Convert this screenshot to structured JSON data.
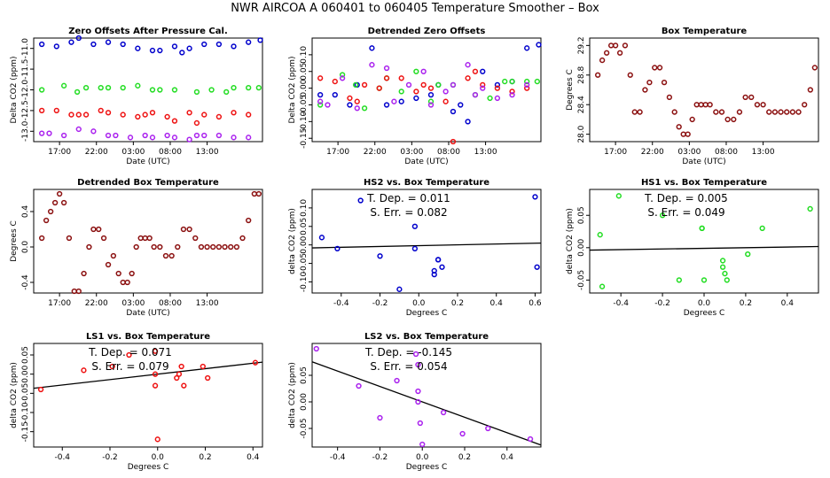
{
  "title": "NWR   AIRCOA A   060401 to 060405   Temperature Smoother – Box",
  "chart_data": [
    {
      "id": "p1",
      "type": "scatter",
      "title": "Zero Offsets After Pressure Cal.",
      "xlabel": "Date (UTC)",
      "ylabel": "Delta CO2 (ppm)",
      "xlim": [
        13.5,
        44.5
      ],
      "ylim": [
        -13.25,
        -10.75
      ],
      "xticks": [
        17,
        22,
        27,
        32,
        37
      ],
      "xtick_labels": [
        "17:00",
        "22:00",
        "03:00",
        "08:00",
        "13:00"
      ],
      "yticks": [
        -13,
        -12.5,
        -12,
        -11.5,
        -11
      ],
      "ytick_labels": [
        "-13.0",
        "-12.5",
        "-12.0",
        "-11.5",
        "-11.0"
      ],
      "series": [
        {
          "name": "HS2",
          "color": "#0000cc",
          "x": [
            14.6,
            16.6,
            18.6,
            19.6,
            21.6,
            23.6,
            25.6,
            27.6,
            29.6,
            30.6,
            32.6,
            33.6,
            34.6,
            36.6,
            38.6,
            40.6,
            42.6,
            44.2
          ],
          "y": [
            -10.9,
            -10.95,
            -10.85,
            -10.75,
            -10.9,
            -10.85,
            -10.9,
            -11.0,
            -11.05,
            -11.05,
            -10.95,
            -11.1,
            -11.0,
            -10.9,
            -10.9,
            -10.95,
            -10.85,
            -10.8
          ]
        },
        {
          "name": "HS1",
          "color": "#22dd22",
          "x": [
            14.6,
            17.6,
            19.4,
            20.6,
            22.6,
            23.6,
            25.6,
            27.6,
            29.6,
            30.6,
            32.6,
            35.6,
            37.6,
            39.6,
            40.6,
            42.6,
            44.0
          ],
          "y": [
            -12.0,
            -11.9,
            -12.05,
            -11.95,
            -11.95,
            -11.95,
            -11.95,
            -11.9,
            -12.0,
            -12.0,
            -12.0,
            -12.05,
            -12.0,
            -12.05,
            -11.95,
            -11.95,
            -11.95
          ]
        },
        {
          "name": "LS1",
          "color": "#ee1111",
          "x": [
            14.6,
            16.6,
            18.6,
            19.6,
            20.6,
            22.6,
            23.6,
            25.6,
            27.6,
            28.6,
            29.6,
            31.6,
            32.6,
            34.6,
            35.6,
            36.6,
            38.6,
            40.6,
            42.6
          ],
          "y": [
            -12.5,
            -12.5,
            -12.6,
            -12.6,
            -12.6,
            -12.5,
            -12.55,
            -12.6,
            -12.65,
            -12.6,
            -12.55,
            -12.65,
            -12.75,
            -12.55,
            -12.8,
            -12.6,
            -12.65,
            -12.55,
            -12.6
          ]
        },
        {
          "name": "LS2",
          "color": "#aa22ee",
          "x": [
            14.6,
            15.6,
            17.6,
            19.6,
            21.6,
            23.6,
            24.6,
            26.6,
            28.6,
            29.6,
            31.6,
            32.6,
            34.6,
            35.6,
            36.6,
            38.6,
            40.6,
            42.6
          ],
          "y": [
            -13.05,
            -13.05,
            -13.1,
            -12.95,
            -13.0,
            -13.1,
            -13.1,
            -13.15,
            -13.1,
            -13.15,
            -13.1,
            -13.15,
            -13.2,
            -13.1,
            -13.1,
            -13.1,
            -13.15,
            -13.15
          ]
        }
      ]
    },
    {
      "id": "p2",
      "type": "scatter",
      "title": "Detrended Zero Offsets",
      "xlabel": "Date (UTC)",
      "ylabel": "Delta CO2 (ppm)",
      "xlim": [
        13.5,
        44.5
      ],
      "ylim": [
        -0.16,
        0.15
      ],
      "xticks": [
        17,
        22,
        27,
        32,
        37
      ],
      "xtick_labels": [
        "17:00",
        "22:00",
        "03:00",
        "08:00",
        "13:00"
      ],
      "yticks": [
        -0.15,
        -0.1,
        -0.05,
        0,
        0.05,
        0.1
      ],
      "ytick_labels": [
        "-0.15",
        "-0.10",
        "-0.05",
        "0.00",
        "0.05",
        "0.10"
      ],
      "series": [
        {
          "name": "HS2",
          "color": "#0000cc",
          "x": [
            14.6,
            16.6,
            18.6,
            19.6,
            21.6,
            23.6,
            25.6,
            27.6,
            29.6,
            30.6,
            32.6,
            33.6,
            34.6,
            36.6,
            38.6,
            40.6,
            42.6,
            44.2
          ],
          "y": [
            -0.02,
            -0.02,
            -0.05,
            0.01,
            0.12,
            -0.05,
            -0.04,
            -0.03,
            -0.02,
            0.01,
            -0.07,
            -0.05,
            -0.1,
            0.05,
            0.01,
            0.02,
            0.12,
            0.13
          ]
        },
        {
          "name": "HS1",
          "color": "#22dd22",
          "x": [
            14.6,
            17.6,
            19.4,
            20.6,
            22.6,
            23.6,
            25.6,
            27.6,
            29.6,
            30.6,
            32.6,
            35.6,
            37.6,
            39.6,
            40.6,
            42.6,
            44.0
          ],
          "y": [
            -0.05,
            0.04,
            0.01,
            -0.06,
            0.0,
            0.03,
            -0.01,
            0.05,
            -0.04,
            0.01,
            0.01,
            -0.02,
            -0.03,
            0.02,
            0.02,
            0.02,
            0.02
          ]
        },
        {
          "name": "LS1",
          "color": "#ee1111",
          "x": [
            14.6,
            16.6,
            18.6,
            19.6,
            20.6,
            22.6,
            23.6,
            25.6,
            27.6,
            28.6,
            29.6,
            31.6,
            32.6,
            34.6,
            35.6,
            36.6,
            38.6,
            40.6,
            42.6
          ],
          "y": [
            0.03,
            0.02,
            -0.03,
            -0.04,
            0.01,
            0.0,
            0.03,
            0.03,
            -0.01,
            0.01,
            0.0,
            -0.04,
            -0.16,
            0.03,
            0.05,
            0.01,
            0.0,
            -0.01,
            0.0
          ]
        },
        {
          "name": "LS2",
          "color": "#aa22ee",
          "x": [
            14.6,
            15.6,
            17.6,
            19.6,
            21.6,
            23.6,
            24.6,
            26.6,
            28.6,
            29.6,
            31.6,
            32.6,
            34.6,
            35.6,
            36.6,
            38.6,
            40.6,
            42.6
          ],
          "y": [
            -0.04,
            -0.05,
            0.03,
            -0.06,
            0.07,
            0.06,
            -0.04,
            0.01,
            0.05,
            -0.05,
            -0.01,
            0.01,
            0.07,
            -0.02,
            0.0,
            -0.03,
            -0.02,
            0.01
          ]
        }
      ]
    },
    {
      "id": "p3",
      "type": "scatter",
      "title": "Box Temperature",
      "xlabel": "Date (UTC)",
      "ylabel": "Degrees C",
      "xlim": [
        13.5,
        44.5
      ],
      "ylim": [
        27.9,
        29.3
      ],
      "xticks": [
        17,
        22,
        27,
        32,
        37
      ],
      "xtick_labels": [
        "17:00",
        "22:00",
        "03:00",
        "08:00",
        "13:00"
      ],
      "yticks": [
        28.0,
        28.4,
        28.8,
        29.2
      ],
      "ytick_labels": [
        "28.0",
        "28.4",
        "28.8",
        "29.2"
      ],
      "series": [
        {
          "name": "Box",
          "color": "#8b1010",
          "x": [
            14.6,
            15.2,
            15.8,
            16.4,
            17.0,
            17.6,
            18.3,
            19.0,
            19.6,
            20.3,
            21.0,
            21.6,
            22.3,
            23.0,
            23.6,
            24.3,
            25.0,
            25.6,
            26.2,
            26.8,
            27.4,
            28.0,
            28.6,
            29.2,
            29.8,
            30.6,
            31.4,
            32.2,
            33.0,
            33.8,
            34.6,
            35.4,
            36.2,
            37.0,
            37.8,
            38.6,
            39.4,
            40.2,
            41.0,
            41.8,
            42.6,
            43.4,
            44.0
          ],
          "y": [
            28.8,
            29.0,
            29.1,
            29.2,
            29.2,
            29.1,
            29.2,
            28.8,
            28.3,
            28.3,
            28.6,
            28.7,
            28.9,
            28.9,
            28.7,
            28.5,
            28.3,
            28.1,
            28.0,
            28.0,
            28.2,
            28.4,
            28.4,
            28.4,
            28.4,
            28.3,
            28.3,
            28.2,
            28.2,
            28.3,
            28.5,
            28.5,
            28.4,
            28.4,
            28.3,
            28.3,
            28.3,
            28.3,
            28.3,
            28.3,
            28.4,
            28.6,
            28.9
          ]
        }
      ]
    },
    {
      "id": "p4",
      "type": "scatter",
      "title": "Detrended Box Temperature",
      "xlabel": "Date (UTC)",
      "ylabel": "Degrees C",
      "xlim": [
        13.5,
        44.5
      ],
      "ylim": [
        -0.52,
        0.65
      ],
      "xticks": [
        17,
        22,
        27,
        32,
        37
      ],
      "xtick_labels": [
        "17:00",
        "22:00",
        "03:00",
        "08:00",
        "13:00"
      ],
      "yticks": [
        -0.4,
        0,
        0.4
      ],
      "ytick_labels": [
        "-0.4",
        "0.0",
        "0.4"
      ],
      "series": [
        {
          "name": "Box",
          "color": "#8b1010",
          "x": [
            14.6,
            15.2,
            15.8,
            16.4,
            17.0,
            17.6,
            18.3,
            19.0,
            19.6,
            20.3,
            21.0,
            21.6,
            22.3,
            23.0,
            23.6,
            24.3,
            25.0,
            25.6,
            26.2,
            26.8,
            27.4,
            28.0,
            28.6,
            29.2,
            29.8,
            30.6,
            31.4,
            32.2,
            33.0,
            33.8,
            34.6,
            35.4,
            36.2,
            37.0,
            37.8,
            38.6,
            39.4,
            40.2,
            41.0,
            41.8,
            42.6,
            43.4,
            44.0
          ],
          "y": [
            0.1,
            0.3,
            0.4,
            0.5,
            0.6,
            0.5,
            0.1,
            -0.5,
            -0.5,
            -0.3,
            0.0,
            0.2,
            0.2,
            0.1,
            -0.2,
            -0.1,
            -0.3,
            -0.4,
            -0.4,
            -0.3,
            0.0,
            0.1,
            0.1,
            0.1,
            0.0,
            0.0,
            -0.1,
            -0.1,
            0.0,
            0.2,
            0.2,
            0.1,
            0.0,
            0.0,
            0.0,
            0.0,
            0.0,
            0.0,
            0.0,
            0.1,
            0.3,
            0.6,
            0.6
          ]
        }
      ]
    },
    {
      "id": "p5",
      "type": "scatter",
      "title": "HS2 vs. Box Temperature",
      "xlabel": "Degrees C",
      "ylabel": "delta CO2 (ppm)",
      "xlim": [
        -0.55,
        0.63
      ],
      "ylim": [
        -0.13,
        0.15
      ],
      "xticks": [
        -0.4,
        -0.2,
        0,
        0.2,
        0.4,
        0.6
      ],
      "xtick_labels": [
        "-0.4",
        "-0.2",
        "0.0",
        "0.2",
        "0.4",
        "0.6"
      ],
      "yticks": [
        -0.1,
        -0.05,
        0,
        0.05,
        0.1
      ],
      "ytick_labels": [
        "-0.10",
        "-0.05",
        "0.00",
        "0.05",
        "0.10"
      ],
      "annotation": [
        "T. Dep. =  0.011",
        "S. Err. =  0.082"
      ],
      "fit": {
        "slope": 0.011,
        "intercept": -0.002
      },
      "series": [
        {
          "name": "HS2",
          "color": "#0000cc",
          "x": [
            -0.5,
            -0.42,
            -0.3,
            -0.2,
            -0.1,
            -0.02,
            -0.02,
            0.08,
            0.08,
            0.1,
            0.1,
            0.12,
            0.6,
            0.61
          ],
          "y": [
            0.02,
            -0.01,
            0.12,
            -0.03,
            -0.12,
            0.05,
            -0.01,
            -0.08,
            -0.07,
            -0.04,
            -0.04,
            -0.06,
            0.13,
            -0.06
          ]
        }
      ]
    },
    {
      "id": "p6",
      "type": "scatter",
      "title": "HS1 vs. Box Temperature",
      "xlabel": "Degrees C",
      "ylabel": "delta CO2 (ppm)",
      "xlim": [
        -0.55,
        0.55
      ],
      "ylim": [
        -0.07,
        0.09
      ],
      "xticks": [
        -0.4,
        -0.2,
        0,
        0.2,
        0.4
      ],
      "xtick_labels": [
        "-0.4",
        "-0.2",
        "0.0",
        "0.2",
        "0.4"
      ],
      "yticks": [
        -0.05,
        0,
        0.05
      ],
      "ytick_labels": [
        "-0.05",
        "0.00",
        "0.05"
      ],
      "annotation": [
        "T. Dep. =  0.005",
        "S. Err. =  0.049"
      ],
      "fit": {
        "slope": 0.005,
        "intercept": -0.001
      },
      "series": [
        {
          "name": "HS1",
          "color": "#22dd22",
          "x": [
            -0.5,
            -0.49,
            -0.41,
            -0.2,
            -0.12,
            -0.01,
            -0.01,
            0.0,
            0.09,
            0.09,
            0.1,
            0.11,
            0.21,
            0.28,
            0.51
          ],
          "y": [
            0.02,
            -0.06,
            0.08,
            0.05,
            -0.05,
            0.03,
            0.03,
            -0.05,
            -0.02,
            -0.03,
            -0.04,
            -0.05,
            -0.01,
            0.03,
            0.06
          ]
        }
      ]
    },
    {
      "id": "p7",
      "type": "scatter",
      "title": "LS1 vs. Box Temperature",
      "xlabel": "Degrees C",
      "ylabel": "delta CO2 (ppm)",
      "xlim": [
        -0.52,
        0.44
      ],
      "ylim": [
        -0.19,
        0.08
      ],
      "xticks": [
        -0.4,
        -0.2,
        0,
        0.2,
        0.4
      ],
      "xtick_labels": [
        "-0.4",
        "-0.2",
        "0.0",
        "0.2",
        "0.4"
      ],
      "yticks": [
        -0.15,
        -0.1,
        -0.05,
        0,
        0.05
      ],
      "ytick_labels": [
        "-0.15",
        "-0.10",
        "-0.05",
        "0.00",
        "0.05"
      ],
      "annotation": [
        "T. Dep. =  0.071",
        "S. Err. =  0.079"
      ],
      "fit": {
        "slope": 0.071,
        "intercept": 0.0
      },
      "series": [
        {
          "name": "LS1",
          "color": "#ee1111",
          "x": [
            -0.49,
            -0.31,
            -0.19,
            -0.12,
            -0.01,
            -0.01,
            -0.01,
            0.0,
            0.08,
            0.09,
            0.1,
            0.11,
            0.19,
            0.21,
            0.41
          ],
          "y": [
            -0.04,
            0.01,
            0.02,
            0.05,
            0.06,
            0.0,
            -0.03,
            -0.17,
            -0.01,
            0.0,
            0.02,
            -0.03,
            0.02,
            -0.01,
            0.03
          ]
        }
      ]
    },
    {
      "id": "p8",
      "type": "scatter",
      "title": "LS2 vs. Box Temperature",
      "xlabel": "Degrees C",
      "ylabel": "delta CO2 (ppm)",
      "xlim": [
        -0.52,
        0.56
      ],
      "ylim": [
        -0.085,
        0.11
      ],
      "xticks": [
        -0.4,
        -0.2,
        0,
        0.2,
        0.4
      ],
      "xtick_labels": [
        "-0.4",
        "-0.2",
        "0.0",
        "0.2",
        "0.4"
      ],
      "yticks": [
        -0.05,
        0,
        0.05
      ],
      "ytick_labels": [
        "-0.05",
        "0.00",
        "0.05"
      ],
      "annotation": [
        "T. Dep. =  -0.145",
        "S. Err. =  0.054"
      ],
      "fit": {
        "slope": -0.145,
        "intercept": 0.0
      },
      "series": [
        {
          "name": "LS2",
          "color": "#aa22ee",
          "x": [
            -0.5,
            -0.3,
            -0.2,
            -0.12,
            -0.03,
            -0.02,
            -0.02,
            -0.02,
            -0.01,
            0.0,
            0.1,
            0.19,
            0.31,
            0.51
          ],
          "y": [
            0.1,
            0.03,
            -0.03,
            0.04,
            0.09,
            0.07,
            0.02,
            0.0,
            -0.04,
            -0.08,
            -0.02,
            -0.06,
            -0.05,
            -0.07
          ]
        }
      ]
    }
  ]
}
